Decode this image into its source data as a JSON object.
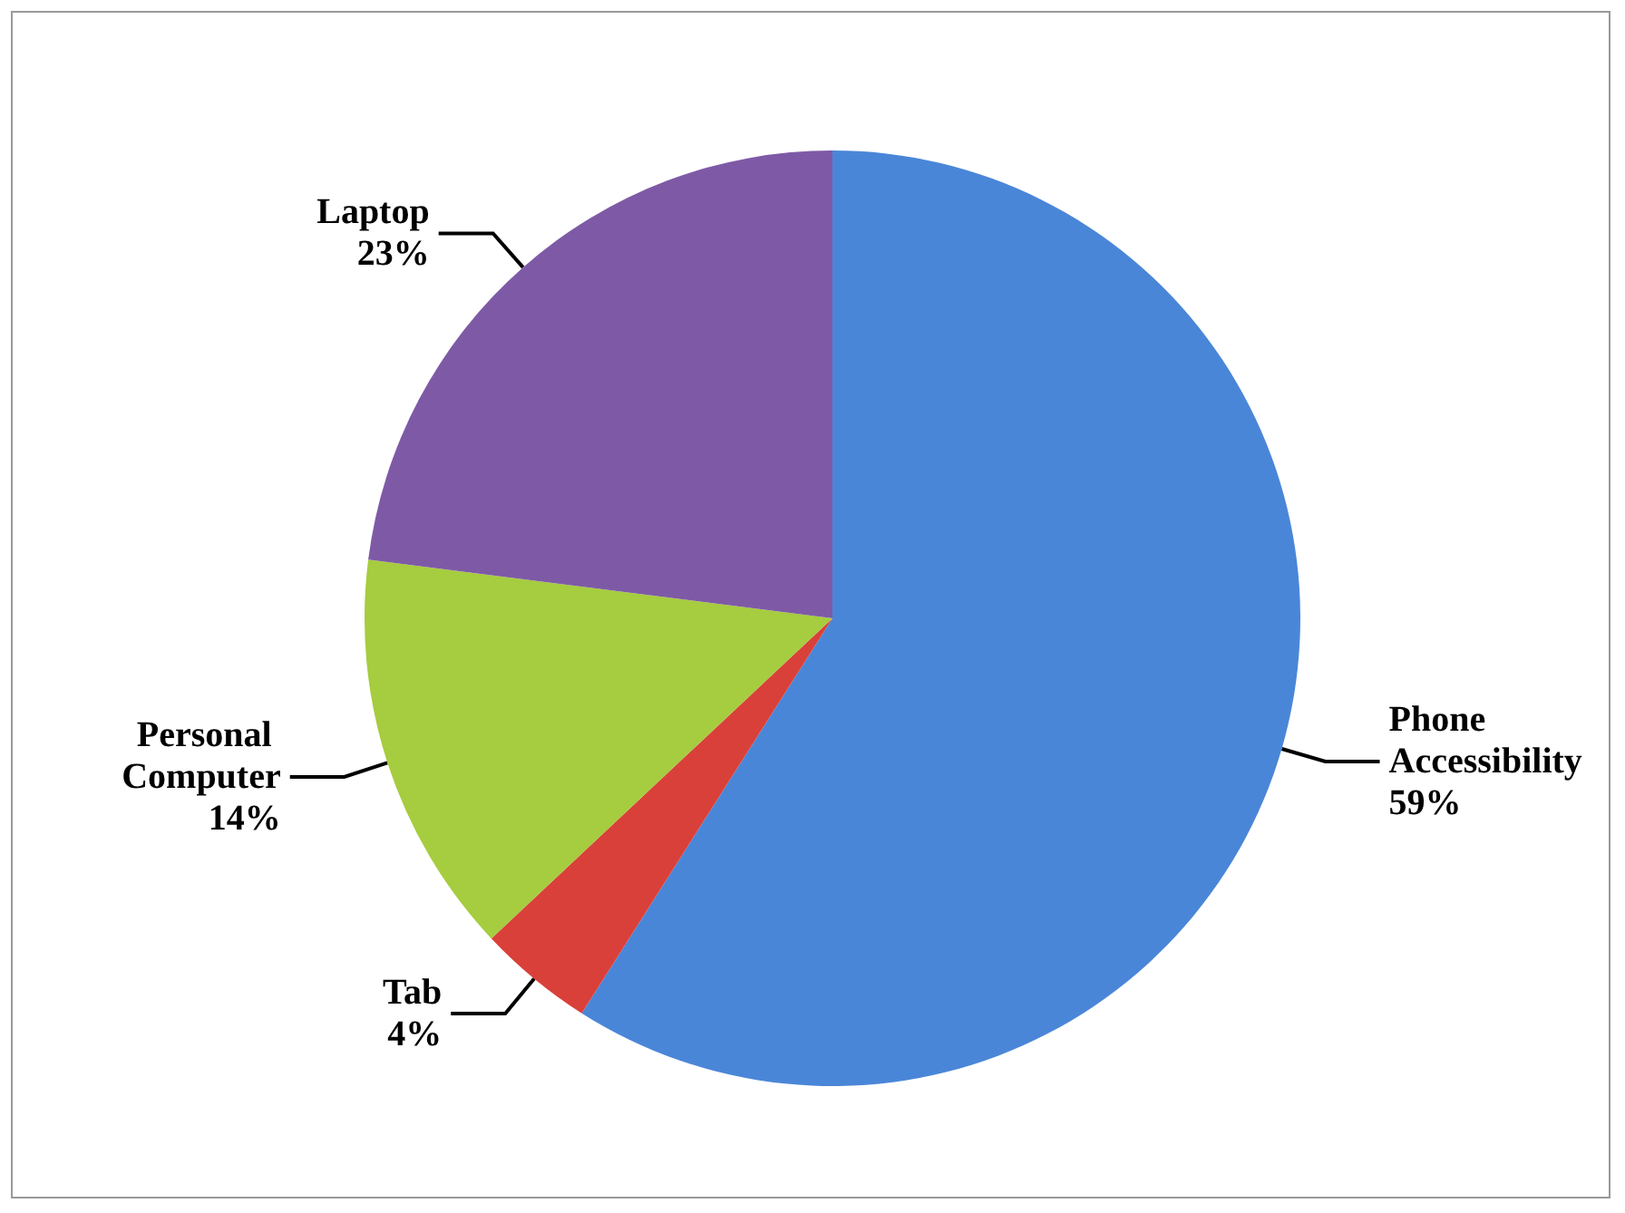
{
  "chart_data": {
    "type": "pie",
    "categories": [
      "Phone Accessibility",
      "Tab",
      "Personal Computer",
      "Laptop"
    ],
    "values": [
      59,
      4,
      14,
      23
    ],
    "value_labels": [
      "59%",
      "4%",
      "14%",
      "23%"
    ],
    "colors": [
      "#4a86d8",
      "#d9403a",
      "#a6cc3f",
      "#7e5aa6"
    ],
    "legend": false
  }
}
